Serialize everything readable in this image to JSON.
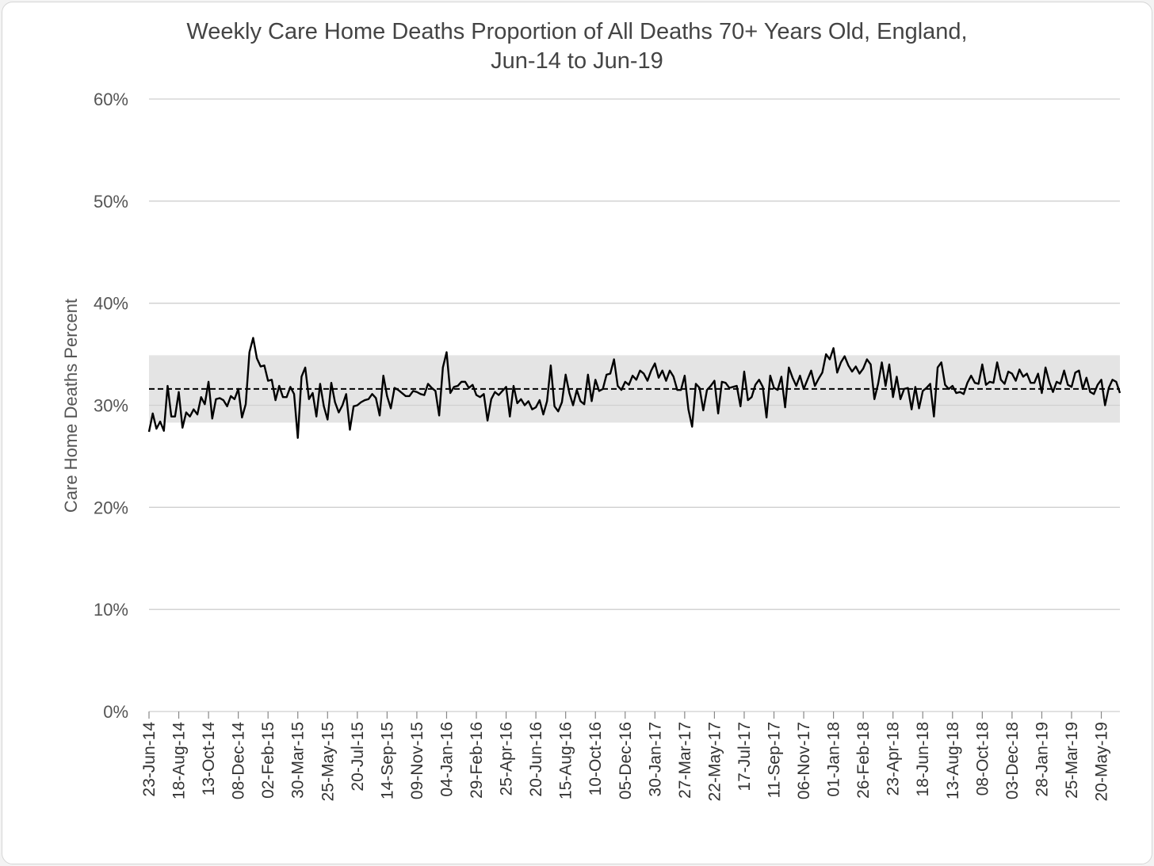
{
  "chart_data": {
    "type": "line",
    "title": "Weekly Care Home Deaths Proportion of All Deaths 70+ Years Old, England,",
    "subtitle": "Jun-14 to Jun-19",
    "ylabel": "Care Home Deaths Percent",
    "xlabel": "",
    "ylim": [
      0,
      60
    ],
    "y_ticks": [
      "0%",
      "10%",
      "20%",
      "30%",
      "40%",
      "50%",
      "60%"
    ],
    "y_tick_values": [
      0,
      10,
      20,
      30,
      40,
      50,
      60
    ],
    "grid": true,
    "x_tick_every": 8,
    "x_tick_labels": [
      "23-Jun-14",
      "18-Aug-14",
      "13-Oct-14",
      "08-Dec-14",
      "02-Feb-15",
      "30-Mar-15",
      "25-May-15",
      "20-Jul-15",
      "14-Sep-15",
      "09-Nov-15",
      "04-Jan-16",
      "29-Feb-16",
      "25-Apr-16",
      "20-Jun-16",
      "15-Aug-16",
      "10-Oct-16",
      "05-Dec-16",
      "30-Jan-17",
      "27-Mar-17",
      "22-May-17",
      "17-Jul-17",
      "11-Sep-17",
      "06-Nov-17",
      "01-Jan-18",
      "26-Feb-18",
      "23-Apr-18",
      "18-Jun-18",
      "13-Aug-18",
      "08-Oct-18",
      "03-Dec-18",
      "28-Jan-19",
      "25-Mar-19",
      "20-May-19"
    ],
    "mean_line": 31.6,
    "band": [
      28.3,
      34.9
    ],
    "colors": {
      "line": "#000000",
      "band": "#e4e4e4",
      "grid": "#cfcfcf",
      "mean": "#000000"
    },
    "series": [
      {
        "values": [
          27.4,
          29.2,
          27.7,
          28.4,
          27.5,
          31.9,
          28.9,
          28.9,
          31.3,
          27.8,
          29.3,
          28.9,
          29.6,
          29.1,
          30.8,
          30.1,
          32.3,
          28.7,
          30.6,
          30.7,
          30.5,
          29.9,
          30.9,
          30.6,
          31.6,
          28.8,
          30.1,
          35.2,
          36.6,
          34.6,
          33.8,
          33.9,
          32.4,
          32.5,
          30.5,
          31.9,
          30.8,
          30.8,
          31.8,
          31.1,
          26.8,
          32.8,
          33.7,
          30.6,
          31.2,
          28.9,
          32.1,
          29.9,
          28.6,
          32.2,
          30.3,
          29.3,
          30.0,
          31.1,
          27.6,
          29.9,
          30.0,
          30.3,
          30.5,
          30.6,
          31.1,
          30.7,
          29.0,
          32.9,
          30.9,
          29.7,
          31.7,
          31.5,
          31.2,
          30.9,
          30.9,
          31.4,
          31.3,
          31.1,
          31.0,
          32.1,
          31.7,
          31.4,
          29.0,
          33.7,
          35.2,
          31.2,
          31.8,
          31.9,
          32.3,
          32.3,
          31.7,
          32.0,
          31.0,
          30.8,
          31.1,
          28.5,
          30.6,
          31.3,
          31.0,
          31.4,
          31.8,
          28.9,
          31.9,
          30.2,
          30.6,
          30.0,
          30.4,
          29.6,
          29.8,
          30.5,
          29.1,
          30.4,
          33.9,
          29.9,
          29.4,
          30.3,
          33.0,
          31.2,
          30.0,
          31.5,
          30.4,
          30.1,
          33.0,
          30.4,
          32.5,
          31.4,
          31.6,
          33.0,
          33.1,
          34.5,
          31.9,
          31.5,
          32.3,
          32.0,
          32.9,
          32.5,
          33.4,
          33.1,
          32.4,
          33.4,
          34.1,
          32.7,
          33.4,
          32.4,
          33.4,
          32.8,
          31.5,
          31.5,
          32.9,
          29.6,
          27.9,
          32.1,
          31.7,
          29.5,
          31.5,
          31.9,
          32.4,
          29.2,
          32.3,
          32.2,
          31.7,
          31.8,
          31.9,
          29.9,
          33.3,
          30.5,
          30.8,
          32.0,
          32.5,
          31.8,
          28.8,
          32.9,
          31.7,
          31.5,
          32.8,
          29.8,
          33.7,
          32.7,
          31.9,
          32.9,
          31.6,
          32.5,
          33.4,
          31.9,
          32.6,
          33.2,
          35.0,
          34.5,
          35.6,
          33.2,
          34.2,
          34.8,
          33.9,
          33.3,
          33.8,
          33.1,
          33.6,
          34.5,
          34.0,
          30.6,
          32.1,
          34.2,
          31.9,
          34.0,
          30.8,
          32.8,
          30.6,
          31.6,
          31.7,
          29.6,
          31.8,
          29.7,
          31.4,
          31.7,
          32.1,
          28.9,
          33.7,
          34.2,
          32.0,
          31.6,
          31.9,
          31.2,
          31.3,
          31.1,
          32.2,
          32.9,
          32.2,
          32.1,
          34.0,
          32.0,
          32.3,
          32.2,
          34.2,
          32.5,
          32.1,
          33.3,
          33.1,
          32.4,
          33.5,
          32.8,
          33.1,
          32.2,
          32.2,
          33.1,
          31.2,
          33.7,
          32.3,
          31.3,
          32.3,
          32.1,
          33.4,
          32.0,
          31.8,
          33.2,
          33.4,
          31.6,
          32.7,
          31.3,
          31.1,
          32.0,
          32.5,
          30.0,
          31.7,
          32.5,
          32.3,
          31.2
        ]
      }
    ]
  }
}
